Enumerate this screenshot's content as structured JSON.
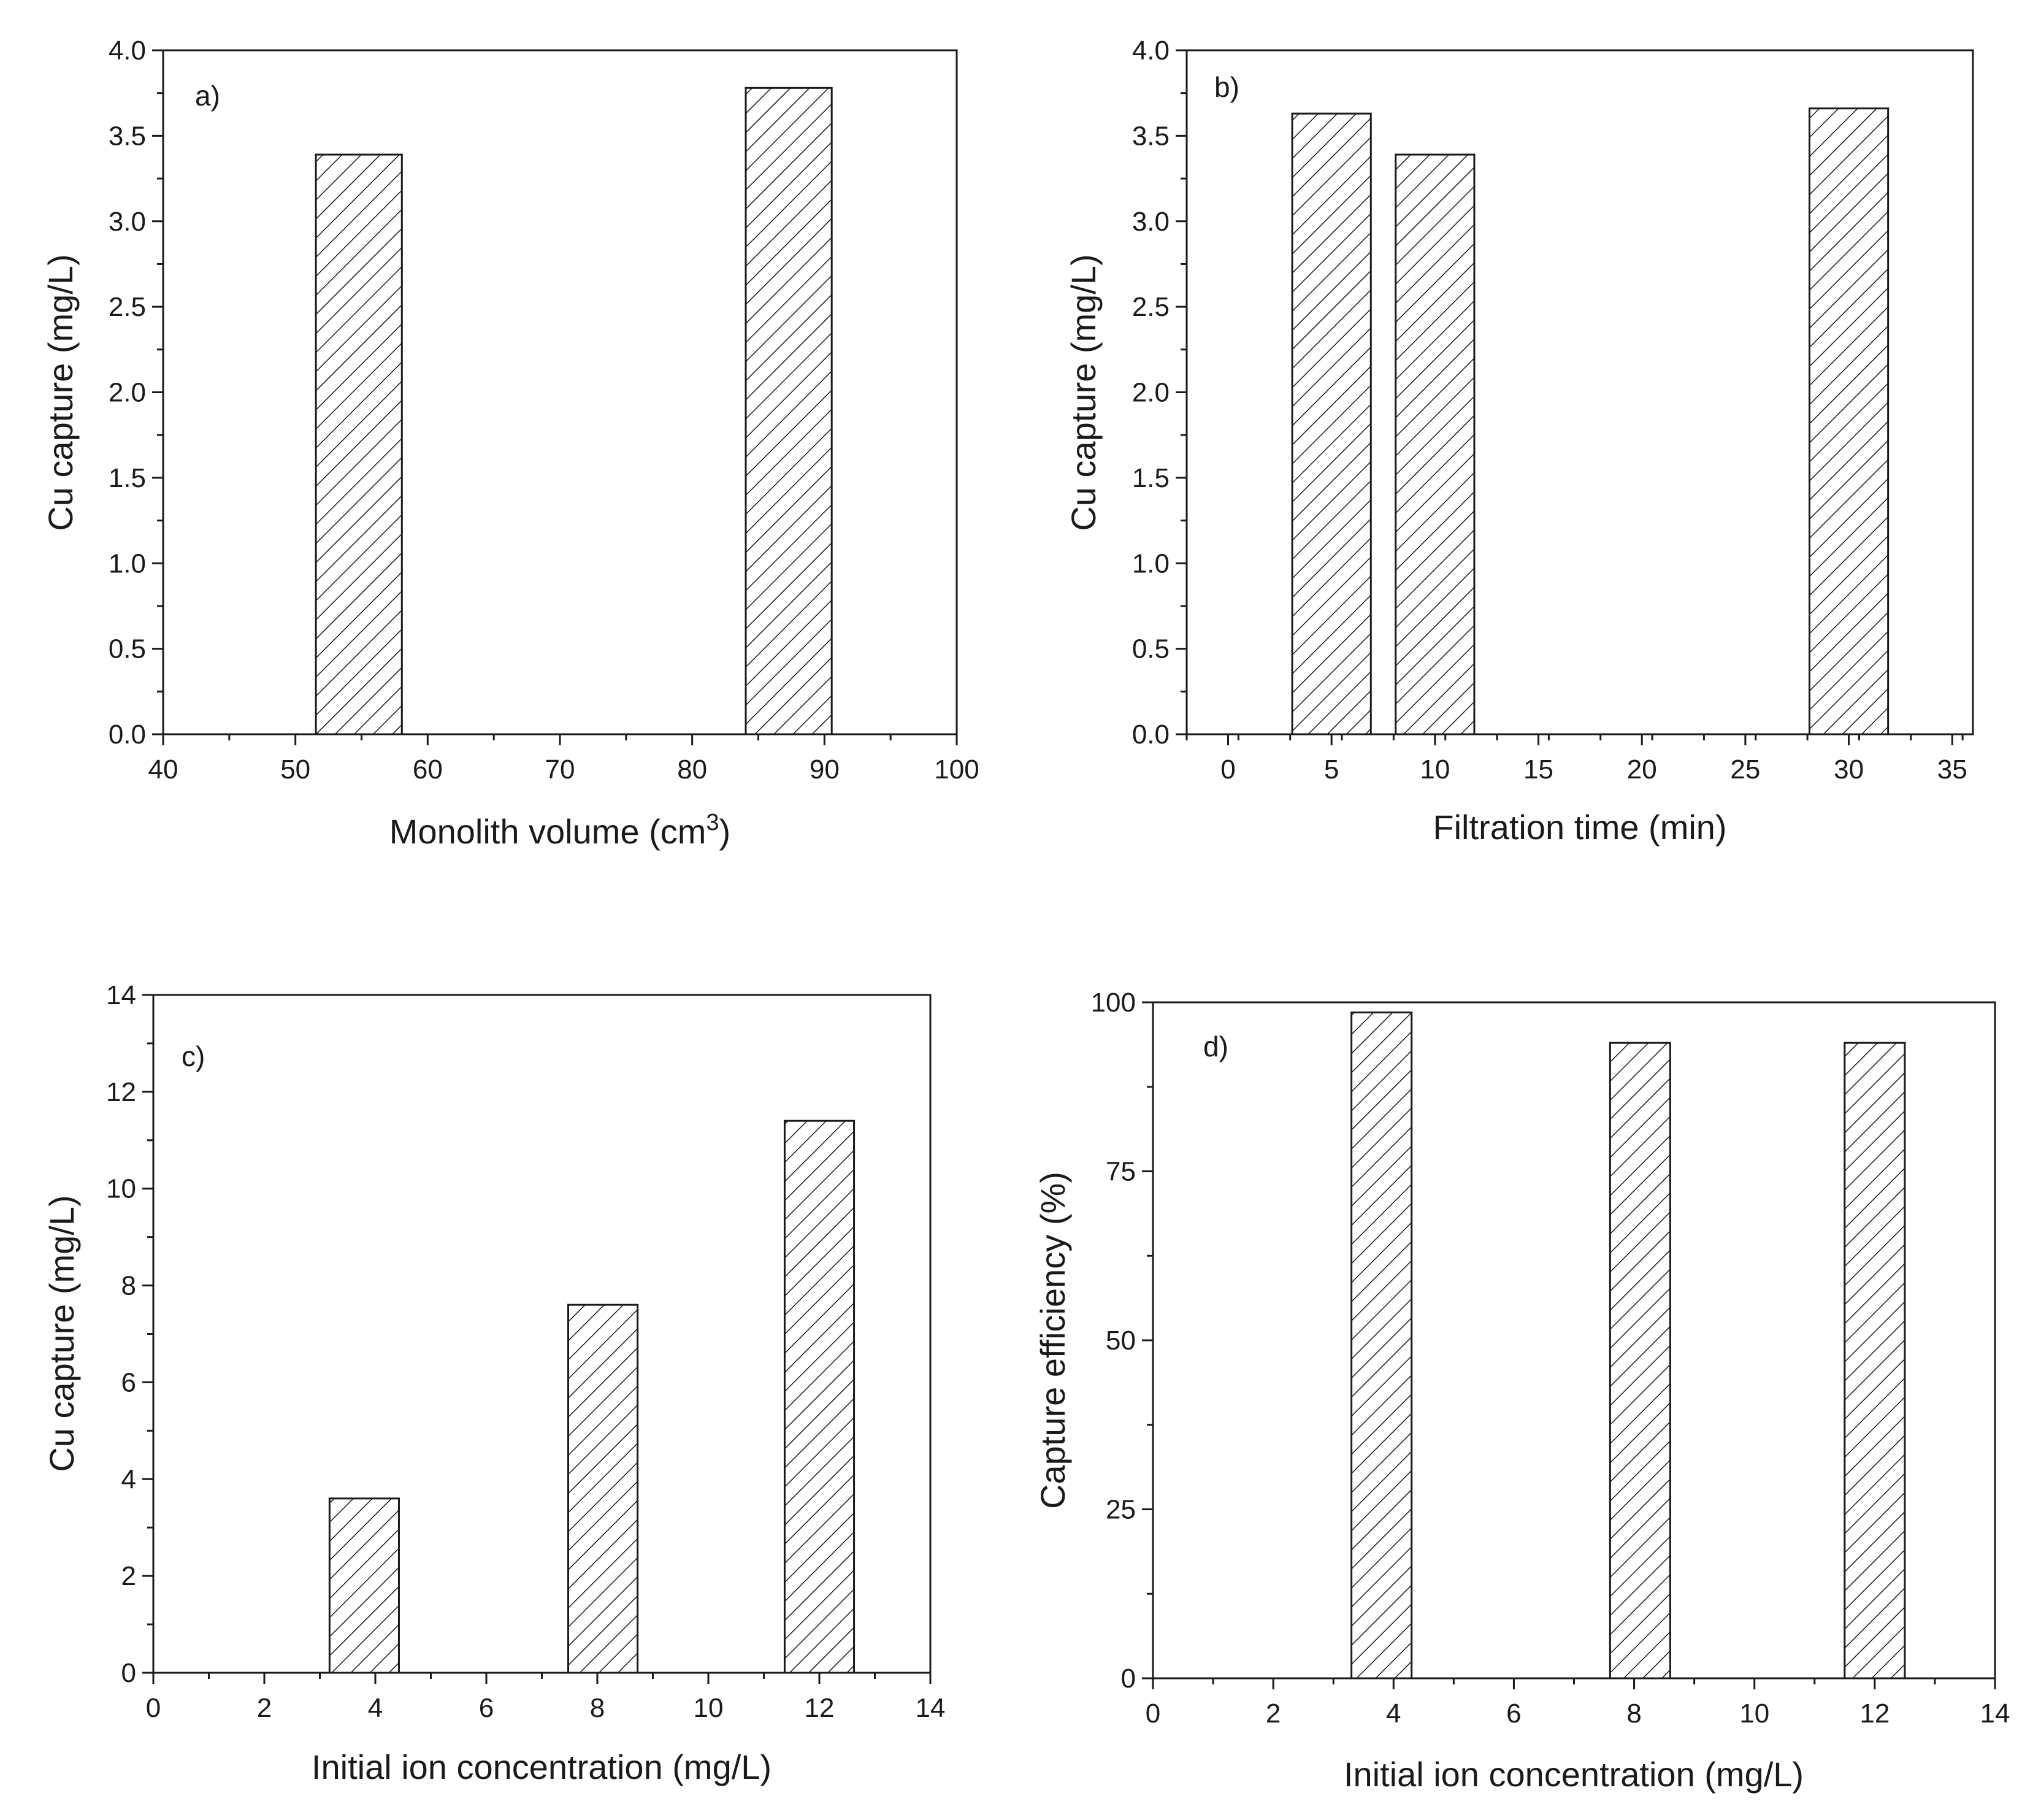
{
  "colors": {
    "ink": "#1a1a1a",
    "background": "#ffffff"
  },
  "chart_data": [
    {
      "id": "a",
      "type": "bar",
      "panel_label": "a)",
      "xlabel": "Monolith volume (cm",
      "xlabel_superscript": "3",
      "xlabel_close": ")",
      "ylabel": "Cu capture (mg/L)",
      "xlim": [
        40,
        100
      ],
      "ylim": [
        0,
        4.0
      ],
      "xticks": [
        "40",
        "50",
        "60",
        "70",
        "80",
        "90",
        "100"
      ],
      "yticks": [
        "0.0",
        "0.5",
        "1.0",
        "1.5",
        "2.0",
        "2.5",
        "3.0",
        "3.5",
        "4.0"
      ],
      "x": [
        54.8,
        87.3
      ],
      "values": [
        3.39,
        3.78
      ],
      "bar_width": 6.5
    },
    {
      "id": "b",
      "type": "bar",
      "panel_label": "b)",
      "xlabel": "Filtration time (min)",
      "ylabel": "Cu capture (mg/L)",
      "xlim": [
        -2,
        36
      ],
      "ylim": [
        0,
        4.0
      ],
      "xticks": [
        "0",
        "5",
        "10",
        "15",
        "20",
        "25",
        "30",
        "35"
      ],
      "yticks": [
        "0.0",
        "0.5",
        "1.0",
        "1.5",
        "2.0",
        "2.5",
        "3.0",
        "3.5",
        "4.0"
      ],
      "x": [
        5,
        10,
        30
      ],
      "values": [
        3.63,
        3.39,
        3.66
      ],
      "bar_width": 3.8
    },
    {
      "id": "c",
      "type": "bar",
      "panel_label": "c)",
      "xlabel": "Initial ion concentration (mg/L)",
      "ylabel": "Cu capture (mg/L)",
      "xlim": [
        0,
        14
      ],
      "ylim": [
        0,
        14
      ],
      "xticks": [
        "0",
        "2",
        "4",
        "6",
        "8",
        "10",
        "12",
        "14"
      ],
      "yticks": [
        "0",
        "2",
        "4",
        "6",
        "8",
        "10",
        "12",
        "14"
      ],
      "x": [
        3.8,
        8.1,
        12
      ],
      "values": [
        3.6,
        7.6,
        11.4
      ],
      "bar_width": 1.25
    },
    {
      "id": "d",
      "type": "bar",
      "panel_label": "d)",
      "xlabel": "Initial ion concentration (mg/L)",
      "ylabel": "Capture efficiency (%)",
      "xlim": [
        0,
        14
      ],
      "ylim": [
        0,
        100
      ],
      "xticks": [
        "0",
        "2",
        "4",
        "6",
        "8",
        "10",
        "12",
        "14"
      ],
      "yticks": [
        "0",
        "25",
        "50",
        "75",
        "100"
      ],
      "x": [
        3.8,
        8.1,
        12
      ],
      "values": [
        98.5,
        94,
        94
      ],
      "bar_width": 1.0
    }
  ]
}
